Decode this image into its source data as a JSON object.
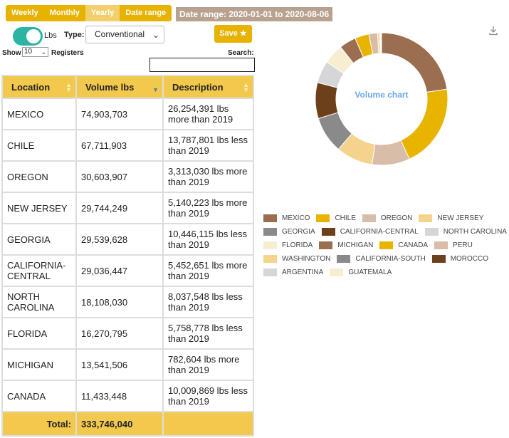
{
  "controls": {
    "periods": [
      "Weekly",
      "Monthly",
      "Yearly",
      "Date range"
    ],
    "active_period": "Yearly",
    "date_range_label": "Date range: 2020-01-01 to 2020-08-06",
    "unit_label": "Lbs",
    "unit_toggle_on": true,
    "type_label": "Type:",
    "type_value": "Conventional",
    "save_label": "Save ★",
    "show_label": "Show",
    "show_value": "10",
    "registers_label": "Registers",
    "search_label": "Search:",
    "search_value": ""
  },
  "table": {
    "headers": [
      "Location",
      "Volume lbs",
      "Description"
    ],
    "rows": [
      {
        "location": "MEXICO",
        "volume": "74,903,703",
        "description": "26,254,391 lbs more than 2019"
      },
      {
        "location": "CHILE",
        "volume": "67,711,903",
        "description": "13,787,801 lbs less than 2019"
      },
      {
        "location": "OREGON",
        "volume": "30,603,907",
        "description": "3,313,030 lbs more than 2019"
      },
      {
        "location": "NEW JERSEY",
        "volume": "29,744,249",
        "description": "5,140,223 lbs more than 2019"
      },
      {
        "location": "GEORGIA",
        "volume": "29,539,628",
        "description": "10,446,115 lbs less than 2019"
      },
      {
        "location": "CALIFORNIA-CENTRAL",
        "volume": "29,036,447",
        "description": "5,452,651 lbs more than 2019"
      },
      {
        "location": "NORTH CAROLINA",
        "volume": "18,108,030",
        "description": "8,037,548 lbs less than 2019"
      },
      {
        "location": "FLORIDA",
        "volume": "16,270,795",
        "description": "5,758,778 lbs less than 2019"
      },
      {
        "location": "MICHIGAN",
        "volume": "13,541,506",
        "description": "782,604 lbs more than 2019"
      },
      {
        "location": "CANADA",
        "volume": "11,433,448",
        "description": "10,009,869 lbs less than 2019"
      }
    ],
    "total_label": "Total:",
    "total_value": "333,746,040"
  },
  "chart_data": {
    "type": "pie",
    "title": "Volume chart",
    "legend_position": "bottom",
    "categories": [
      "MEXICO",
      "CHILE",
      "OREGON",
      "NEW JERSEY",
      "GEORGIA",
      "CALIFORNIA-CENTRAL",
      "NORTH CAROLINA",
      "FLORIDA",
      "MICHIGAN",
      "CANADA",
      "PERU",
      "WASHINGTON",
      "CALIFORNIA-SOUTH",
      "MOROCCO",
      "ARGENTINA",
      "GUATEMALA"
    ],
    "values": [
      74903703,
      67711903,
      30603907,
      29744249,
      29539628,
      29036447,
      18108030,
      16270795,
      13541506,
      11433448,
      7000000,
      1800000,
      600000,
      400000,
      250000,
      150000
    ],
    "colors": [
      "#9b6e4f",
      "#e8b400",
      "#d8bda9",
      "#f4d48c",
      "#8a8a8a",
      "#6b401a",
      "#d6d6d6",
      "#f7edd0",
      "#9b6e4f",
      "#e8b400",
      "#d8bda9",
      "#f4d48c",
      "#8a8a8a",
      "#6b401a",
      "#d6d6d6",
      "#f7edd0"
    ]
  }
}
